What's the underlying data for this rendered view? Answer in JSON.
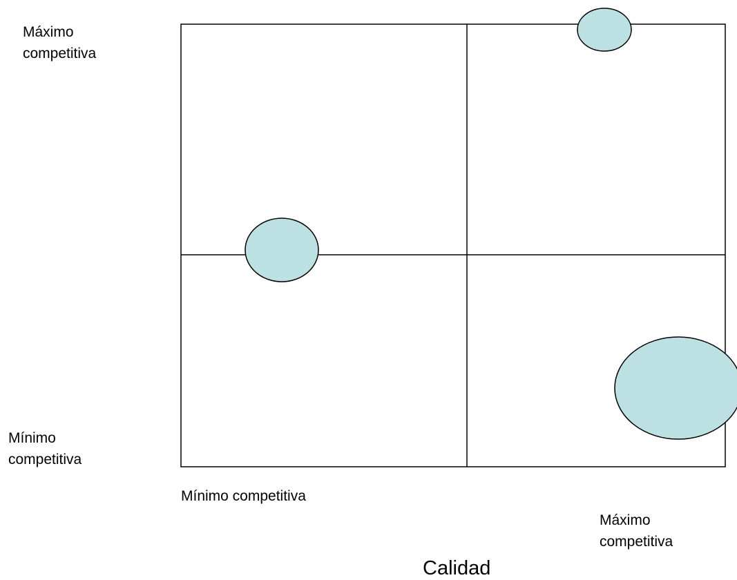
{
  "y_axis": {
    "top_label_line1": "Máximo",
    "top_label_line2": "competitiva",
    "bottom_label_line1": "Mínimo",
    "bottom_label_line2": "competitiva"
  },
  "x_axis": {
    "left_label": "Mínimo competitiva",
    "right_label_line1": "Máximo",
    "right_label_line2": "competitiva",
    "title": "Calidad"
  },
  "colors": {
    "bubble_fill": "#bde0e3",
    "stroke": "#000000"
  },
  "bubbles": [
    {
      "name": "top-right-bubble",
      "quadrant": "top-right"
    },
    {
      "name": "center-left-bubble",
      "quadrant": "center-left"
    },
    {
      "name": "bottom-right-bubble",
      "quadrant": "bottom-right"
    }
  ]
}
